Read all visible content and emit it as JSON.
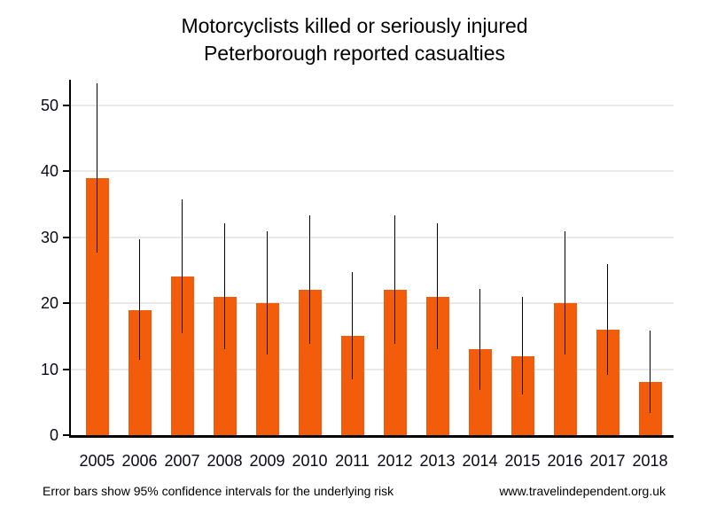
{
  "title": {
    "line1": "Motorcyclists killed or seriously injured",
    "line2": "Peterborough reported casualties"
  },
  "footer": {
    "note": "Error bars show 95% confidence intervals for the underlying risk",
    "website": "www.travelindependent.org.uk"
  },
  "colors": {
    "bar": "#F25C0A",
    "error_bar": "#000000",
    "gridline": "#E9E9E9",
    "axis": "#000000",
    "text": "#0a0a14"
  },
  "chart_data": {
    "type": "bar",
    "title": "Motorcyclists killed or seriously injured",
    "subtitle": "Peterborough reported casualties",
    "categories": [
      "2005",
      "2006",
      "2007",
      "2008",
      "2009",
      "2010",
      "2011",
      "2012",
      "2013",
      "2014",
      "2015",
      "2016",
      "2017",
      "2018"
    ],
    "values": [
      39,
      19,
      24,
      21,
      20,
      22,
      15,
      22,
      21,
      13,
      12,
      20,
      16,
      8
    ],
    "error_bars_95ci": {
      "low": [
        27.7,
        11.4,
        15.4,
        13.0,
        12.2,
        13.8,
        8.4,
        13.8,
        13.0,
        6.9,
        6.2,
        12.2,
        9.1,
        3.4
      ],
      "high": [
        53.3,
        29.7,
        35.7,
        32.1,
        30.9,
        33.3,
        24.7,
        33.3,
        32.1,
        22.2,
        21.0,
        30.9,
        26.0,
        15.8
      ]
    },
    "xlabel": "",
    "ylabel": "",
    "ylim": [
      0,
      53.9
    ],
    "yticks": [
      0,
      10,
      20,
      30,
      40,
      50
    ],
    "grid": "horizontal",
    "legend": "none",
    "annotation": "Error bars show 95% confidence intervals for the underlying risk"
  }
}
